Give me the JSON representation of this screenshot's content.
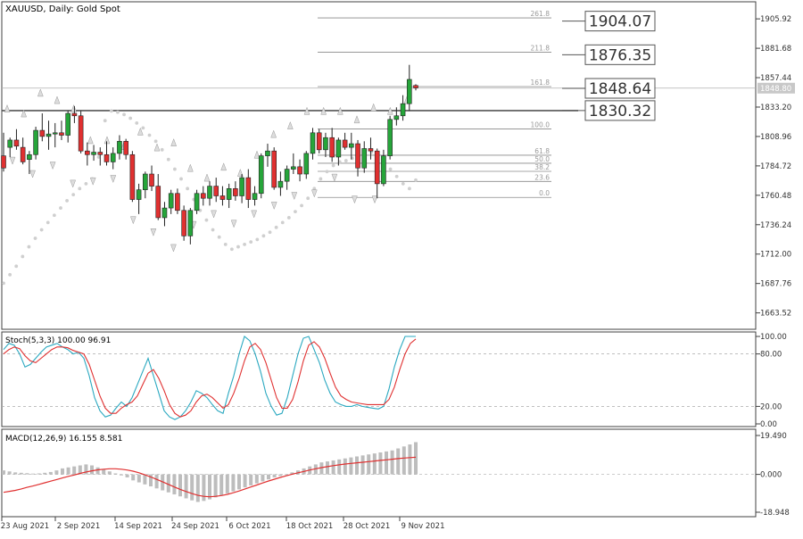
{
  "chart_data": [
    {
      "panel": "price",
      "type": "candlestick",
      "title": "XAUUSD, Daily:  Gold Spot",
      "ylim": [
        1650,
        1920
      ],
      "y_ticks": [
        "1905.92",
        "1881.68",
        "1857.44",
        "1833.20",
        "1808.96",
        "1784.72",
        "1760.48",
        "1736.24",
        "1712.00",
        "1687.76",
        "1663.52"
      ],
      "last_price_label": "1848.80",
      "x_ticks": [
        "23 Aug 2021",
        "2 Sep 2021",
        "14 Sep 2021",
        "24 Sep 2021",
        "6 Oct 2021",
        "18 Oct 2021",
        "28 Oct 2021",
        "9 Nov 2021"
      ],
      "up_color": "#26a53a",
      "down_color": "#e03030",
      "candles": [
        {
          "o": 1793,
          "h": 1812,
          "l": 1780,
          "c": 1783
        },
        {
          "o": 1800,
          "h": 1808,
          "l": 1792,
          "c": 1806
        },
        {
          "o": 1806,
          "h": 1815,
          "l": 1798,
          "c": 1801
        },
        {
          "o": 1800,
          "h": 1808,
          "l": 1786,
          "c": 1788
        },
        {
          "o": 1790,
          "h": 1797,
          "l": 1778,
          "c": 1794
        },
        {
          "o": 1794,
          "h": 1817,
          "l": 1790,
          "c": 1814
        },
        {
          "o": 1814,
          "h": 1828,
          "l": 1805,
          "c": 1809
        },
        {
          "o": 1809,
          "h": 1822,
          "l": 1798,
          "c": 1811
        },
        {
          "o": 1811,
          "h": 1820,
          "l": 1800,
          "c": 1812
        },
        {
          "o": 1812,
          "h": 1822,
          "l": 1806,
          "c": 1810
        },
        {
          "o": 1810,
          "h": 1830,
          "l": 1804,
          "c": 1828
        },
        {
          "o": 1828,
          "h": 1834,
          "l": 1820,
          "c": 1826
        },
        {
          "o": 1826,
          "h": 1830,
          "l": 1795,
          "c": 1797
        },
        {
          "o": 1797,
          "h": 1804,
          "l": 1785,
          "c": 1794
        },
        {
          "o": 1794,
          "h": 1802,
          "l": 1789,
          "c": 1796
        },
        {
          "o": 1796,
          "h": 1800,
          "l": 1785,
          "c": 1794
        },
        {
          "o": 1794,
          "h": 1805,
          "l": 1785,
          "c": 1788
        },
        {
          "o": 1788,
          "h": 1800,
          "l": 1782,
          "c": 1795
        },
        {
          "o": 1795,
          "h": 1810,
          "l": 1790,
          "c": 1805
        },
        {
          "o": 1805,
          "h": 1807,
          "l": 1790,
          "c": 1794
        },
        {
          "o": 1794,
          "h": 1797,
          "l": 1755,
          "c": 1757
        },
        {
          "o": 1757,
          "h": 1770,
          "l": 1745,
          "c": 1765
        },
        {
          "o": 1765,
          "h": 1780,
          "l": 1758,
          "c": 1778
        },
        {
          "o": 1778,
          "h": 1785,
          "l": 1764,
          "c": 1768
        },
        {
          "o": 1768,
          "h": 1778,
          "l": 1740,
          "c": 1742
        },
        {
          "o": 1742,
          "h": 1755,
          "l": 1735,
          "c": 1750
        },
        {
          "o": 1750,
          "h": 1765,
          "l": 1745,
          "c": 1762
        },
        {
          "o": 1762,
          "h": 1766,
          "l": 1745,
          "c": 1748
        },
        {
          "o": 1748,
          "h": 1752,
          "l": 1723,
          "c": 1727
        },
        {
          "o": 1727,
          "h": 1750,
          "l": 1720,
          "c": 1748
        },
        {
          "o": 1748,
          "h": 1765,
          "l": 1745,
          "c": 1762
        },
        {
          "o": 1762,
          "h": 1768,
          "l": 1752,
          "c": 1758
        },
        {
          "o": 1758,
          "h": 1772,
          "l": 1752,
          "c": 1768
        },
        {
          "o": 1768,
          "h": 1775,
          "l": 1755,
          "c": 1760
        },
        {
          "o": 1760,
          "h": 1768,
          "l": 1752,
          "c": 1757
        },
        {
          "o": 1757,
          "h": 1770,
          "l": 1750,
          "c": 1766
        },
        {
          "o": 1766,
          "h": 1772,
          "l": 1756,
          "c": 1760
        },
        {
          "o": 1760,
          "h": 1778,
          "l": 1754,
          "c": 1775
        },
        {
          "o": 1775,
          "h": 1782,
          "l": 1750,
          "c": 1757
        },
        {
          "o": 1757,
          "h": 1768,
          "l": 1752,
          "c": 1762
        },
        {
          "o": 1762,
          "h": 1795,
          "l": 1758,
          "c": 1793
        },
        {
          "o": 1793,
          "h": 1803,
          "l": 1784,
          "c": 1797
        },
        {
          "o": 1797,
          "h": 1800,
          "l": 1765,
          "c": 1767
        },
        {
          "o": 1767,
          "h": 1780,
          "l": 1760,
          "c": 1772
        },
        {
          "o": 1772,
          "h": 1785,
          "l": 1765,
          "c": 1782
        },
        {
          "o": 1782,
          "h": 1795,
          "l": 1778,
          "c": 1784
        },
        {
          "o": 1784,
          "h": 1790,
          "l": 1772,
          "c": 1778
        },
        {
          "o": 1778,
          "h": 1797,
          "l": 1774,
          "c": 1795
        },
        {
          "o": 1795,
          "h": 1816,
          "l": 1790,
          "c": 1812
        },
        {
          "o": 1812,
          "h": 1815,
          "l": 1795,
          "c": 1798
        },
        {
          "o": 1798,
          "h": 1812,
          "l": 1792,
          "c": 1808
        },
        {
          "o": 1808,
          "h": 1816,
          "l": 1788,
          "c": 1792
        },
        {
          "o": 1792,
          "h": 1808,
          "l": 1785,
          "c": 1806
        },
        {
          "o": 1806,
          "h": 1812,
          "l": 1798,
          "c": 1800
        },
        {
          "o": 1800,
          "h": 1812,
          "l": 1790,
          "c": 1803
        },
        {
          "o": 1803,
          "h": 1806,
          "l": 1776,
          "c": 1783
        },
        {
          "o": 1783,
          "h": 1805,
          "l": 1779,
          "c": 1799
        },
        {
          "o": 1799,
          "h": 1808,
          "l": 1790,
          "c": 1797
        },
        {
          "o": 1797,
          "h": 1799,
          "l": 1758,
          "c": 1770
        },
        {
          "o": 1770,
          "h": 1798,
          "l": 1768,
          "c": 1793
        },
        {
          "o": 1793,
          "h": 1826,
          "l": 1790,
          "c": 1823
        },
        {
          "o": 1823,
          "h": 1833,
          "l": 1818,
          "c": 1826
        },
        {
          "o": 1826,
          "h": 1843,
          "l": 1822,
          "c": 1836
        },
        {
          "o": 1836,
          "h": 1868,
          "l": 1830,
          "c": 1856
        },
        {
          "o": 1851,
          "h": 1852,
          "l": 1847,
          "c": 1849
        }
      ],
      "horizontal_lines": [
        1848.8,
        1830.32
      ],
      "right_labels": [
        "1904.07",
        "1876.35",
        "1848.64",
        "1830.32"
      ],
      "fibonacci": [
        {
          "label": "261.8",
          "value": 1906.7
        },
        {
          "label": "211.8",
          "value": 1878.4
        },
        {
          "label": "161.8",
          "value": 1850.1
        },
        {
          "label": "100.0",
          "value": 1815.2
        },
        {
          "label": "61.8",
          "value": 1793.5
        },
        {
          "label": "50.0",
          "value": 1786.9
        },
        {
          "label": "38.2",
          "value": 1780.2
        },
        {
          "label": "23.6",
          "value": 1771.9
        },
        {
          "label": "0.0",
          "value": 1758.7
        }
      ],
      "fractals_up": [
        1832,
        1828,
        1845,
        1839,
        1832,
        1806,
        1806,
        1801,
        1813,
        1800,
        1804,
        1783,
        1775,
        1784,
        1779,
        1794,
        1811,
        1818,
        1830,
        1830,
        1830,
        1823,
        1833,
        1830,
        1839
      ],
      "fractals_down": [
        1789,
        1778,
        1785,
        1770,
        1772,
        1774,
        1740,
        1730,
        1717,
        1736,
        1745,
        1737,
        1745,
        1752,
        1760,
        1762,
        1775,
        1757,
        1757
      ],
      "parabolic_sar": [
        1688,
        1695,
        1702,
        1710,
        1718,
        1725,
        1732,
        1738,
        1744,
        1750,
        1756,
        1761,
        1766,
        1770,
        1774,
        1792,
        1822,
        1830,
        1829,
        1827,
        1824,
        1820,
        1816,
        1810,
        1805,
        1798,
        1790,
        1782,
        1774,
        1766,
        1757,
        1748,
        1740,
        1732,
        1726,
        1720,
        1716,
        1718,
        1720,
        1722,
        1724,
        1727,
        1730,
        1734,
        1738,
        1742,
        1747,
        1752,
        1758,
        1766,
        1774,
        1780,
        1785,
        1788,
        1789,
        1791,
        1793,
        1795,
        1796,
        1792,
        1788,
        1782,
        1776,
        1770,
        1766,
        1773
      ]
    },
    {
      "panel": "stochastic",
      "type": "line",
      "title": "Stoch(5,3,3) 100.00 96.91",
      "ylim": [
        0,
        100
      ],
      "y_ticks": [
        "100.00",
        "80.00",
        "20.00",
        "0.00"
      ],
      "levels": [
        80,
        20
      ],
      "series": [
        {
          "values": [
            85,
            92,
            90,
            80,
            65,
            68,
            75,
            82,
            88,
            90,
            92,
            88,
            85,
            80,
            82,
            75,
            55,
            30,
            15,
            8,
            10,
            18,
            25,
            20,
            30,
            45,
            60,
            75,
            55,
            35,
            15,
            8,
            5,
            8,
            15,
            25,
            38,
            35,
            30,
            22,
            15,
            12,
            35,
            55,
            80,
            100,
            95,
            80,
            60,
            35,
            20,
            10,
            12,
            30,
            55,
            80,
            98,
            100,
            85,
            70,
            50,
            35,
            25,
            22,
            20,
            20,
            22,
            20,
            19,
            18,
            17,
            20,
            40,
            65,
            85,
            100,
            100,
            100
          ]
        },
        {
          "values": [
            80,
            85,
            88,
            86,
            78,
            72,
            70,
            75,
            80,
            85,
            88,
            88,
            87,
            84,
            82,
            80,
            68,
            50,
            32,
            18,
            12,
            12,
            18,
            22,
            25,
            32,
            45,
            58,
            62,
            52,
            38,
            22,
            12,
            8,
            10,
            15,
            25,
            32,
            34,
            30,
            24,
            18,
            22,
            35,
            52,
            72,
            88,
            92,
            85,
            70,
            50,
            30,
            18,
            18,
            28,
            48,
            72,
            90,
            94,
            88,
            75,
            58,
            42,
            32,
            28,
            25,
            24,
            23,
            22,
            22,
            22,
            22,
            28,
            42,
            62,
            80,
            92,
            97
          ]
        }
      ]
    },
    {
      "panel": "macd",
      "type": "bar+line",
      "title": "MACD(12,26,9) 16.155 8.581",
      "ylim": [
        -18.948,
        19.49
      ],
      "y_ticks": [
        "19.490",
        "0.000",
        "-18.948"
      ],
      "histogram": [
        2,
        1.5,
        1,
        0.8,
        0.6,
        0.4,
        0.5,
        0.8,
        1.2,
        2,
        3,
        3.5,
        4,
        4.5,
        5,
        4.5,
        3.5,
        2.5,
        1.5,
        0.5,
        -0.5,
        -1.5,
        -3,
        -4,
        -5,
        -6,
        -7,
        -8,
        -9,
        -10,
        -11,
        -12,
        -13,
        -13.8,
        -13.3,
        -12.5,
        -11.5,
        -10.5,
        -9.5,
        -8.5,
        -7.5,
        -6.5,
        -5.5,
        -4.5,
        -3.5,
        -2.5,
        -1.5,
        -0.8,
        0,
        1,
        2,
        3,
        4,
        5,
        6,
        6.5,
        7,
        7.5,
        8,
        8.5,
        9,
        9.5,
        10,
        10.5,
        11,
        11.5,
        12,
        13,
        14,
        15,
        16.155
      ],
      "signal": [
        -9,
        -8.5,
        -8,
        -7.3,
        -6.5,
        -5.8,
        -5,
        -4.2,
        -3.4,
        -2.6,
        -1.8,
        -1,
        -0.3,
        0.5,
        1.2,
        1.8,
        2.3,
        2.6,
        2.8,
        2.8,
        2.6,
        2.2,
        1.6,
        0.8,
        -0.2,
        -1.3,
        -2.5,
        -3.7,
        -5,
        -6.3,
        -7.5,
        -8.6,
        -9.6,
        -10.5,
        -11,
        -11.2,
        -11,
        -10.6,
        -10,
        -9.2,
        -8.3,
        -7.3,
        -6.3,
        -5.3,
        -4.3,
        -3.3,
        -2.4,
        -1.5,
        -0.7,
        0.1,
        0.8,
        1.5,
        2.2,
        2.8,
        3.4,
        3.9,
        4.4,
        4.8,
        5.2,
        5.5,
        5.8,
        6.1,
        6.4,
        6.7,
        7,
        7.3,
        7.6,
        7.9,
        8.2,
        8.4,
        8.581
      ]
    }
  ]
}
